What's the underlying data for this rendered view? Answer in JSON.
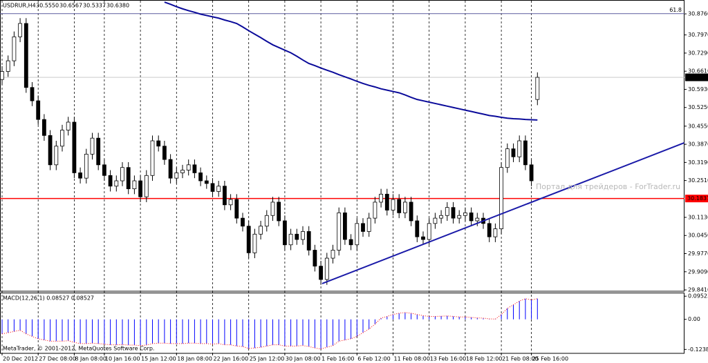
{
  "chart_data": {
    "type": "candlestick",
    "title": "USDRUR,H4",
    "ohlc_labels": [
      "30.5550",
      "30.6567",
      "30.5337",
      "30.6380"
    ],
    "categories": [
      "20 Dec 2012",
      null,
      null,
      null,
      null,
      null,
      "27 Dec 08:00",
      null,
      null,
      null,
      null,
      null,
      "8 Jan 08:00",
      null,
      null,
      null,
      null,
      "10 Jan 16:00",
      null,
      null,
      null,
      null,
      null,
      "15 Jan 12:00",
      null,
      null,
      null,
      null,
      null,
      "18 Jan 08:00",
      null,
      null,
      null,
      null,
      null,
      "22 Jan 16:00",
      null,
      null,
      null,
      null,
      null,
      "25 Jan 12:00",
      null,
      null,
      null,
      null,
      null,
      "30 Jan 08:00",
      null,
      null,
      null,
      null,
      null,
      "1 Feb 16:00",
      null,
      null,
      null,
      null,
      null,
      "6 Feb 12:00",
      null,
      null,
      null,
      null,
      null,
      "11 Feb 08:00",
      null,
      null,
      null,
      null,
      null,
      "13 Feb 16:00",
      null,
      null,
      null,
      null,
      null,
      "18 Feb 12:00",
      null,
      null,
      null,
      null,
      null,
      "21 Feb 08:00",
      null,
      null,
      null,
      null,
      "25 Feb 16:00",
      null
    ],
    "open": [
      30.63,
      30.66,
      30.7,
      30.79,
      30.84,
      30.6,
      30.55,
      30.48,
      30.42,
      30.31,
      30.38,
      30.44,
      30.47,
      30.28,
      30.26,
      30.35,
      30.41,
      30.31,
      30.27,
      30.23,
      30.25,
      30.3,
      30.22,
      30.25,
      30.19,
      30.27,
      30.4,
      30.38,
      30.33,
      30.26,
      30.28,
      30.29,
      30.31,
      30.28,
      30.25,
      30.24,
      30.21,
      30.23,
      30.16,
      30.18,
      30.11,
      30.08,
      29.98,
      30.05,
      30.08,
      30.12,
      30.17,
      30.1,
      30.01,
      30.05,
      30.03,
      30.06,
      29.99,
      29.93,
      29.88,
      29.96,
      29.99,
      30.13,
      30.03,
      30.01,
      30.09,
      30.06,
      30.11,
      30.17,
      30.2,
      30.14,
      30.18,
      30.13,
      30.17,
      30.1,
      30.04,
      30.03,
      30.09,
      30.11,
      30.12,
      30.15,
      30.11,
      30.12,
      30.13,
      30.1,
      30.11,
      30.09,
      30.04,
      30.07,
      30.3,
      30.37,
      30.34,
      30.4,
      30.31,
      30.555
    ],
    "high": [
      30.68,
      30.72,
      30.81,
      30.86,
      30.86,
      30.62,
      30.57,
      30.5,
      30.44,
      30.4,
      30.46,
      30.49,
      30.49,
      30.3,
      30.37,
      30.43,
      30.43,
      30.33,
      30.29,
      30.27,
      30.32,
      30.32,
      30.27,
      30.27,
      30.29,
      30.42,
      30.42,
      30.4,
      30.35,
      30.3,
      30.31,
      30.33,
      30.33,
      30.3,
      30.27,
      30.26,
      30.25,
      30.25,
      30.2,
      30.2,
      30.13,
      30.1,
      30.07,
      30.1,
      30.14,
      30.19,
      30.19,
      30.12,
      30.07,
      30.07,
      30.08,
      30.08,
      30.01,
      29.95,
      29.98,
      30.01,
      30.15,
      30.15,
      30.05,
      30.11,
      30.11,
      30.13,
      30.19,
      30.22,
      30.22,
      30.2,
      30.2,
      30.19,
      30.19,
      30.12,
      30.06,
      30.11,
      30.13,
      30.14,
      30.17,
      30.17,
      30.14,
      30.15,
      30.15,
      30.13,
      30.13,
      30.11,
      30.09,
      30.32,
      30.39,
      30.39,
      30.42,
      30.42,
      30.33,
      30.6567
    ],
    "low": [
      30.61,
      30.64,
      30.68,
      30.77,
      30.58,
      30.53,
      30.46,
      30.4,
      30.29,
      30.29,
      30.36,
      30.42,
      30.26,
      30.24,
      30.24,
      30.33,
      30.29,
      30.25,
      30.21,
      30.21,
      30.23,
      30.2,
      30.2,
      30.17,
      30.17,
      30.25,
      30.36,
      30.31,
      30.24,
      30.24,
      30.26,
      30.27,
      30.26,
      30.23,
      30.22,
      30.19,
      30.19,
      30.14,
      30.14,
      30.09,
      30.06,
      29.96,
      29.96,
      30.03,
      30.06,
      30.1,
      30.08,
      29.99,
      29.99,
      30.01,
      30.01,
      29.97,
      29.91,
      29.86,
      29.86,
      29.94,
      29.97,
      30.01,
      29.99,
      29.99,
      30.04,
      30.04,
      30.09,
      30.15,
      30.12,
      30.12,
      30.11,
      30.11,
      30.08,
      30.02,
      30.01,
      30.01,
      30.07,
      30.09,
      30.1,
      30.09,
      30.09,
      30.1,
      30.08,
      30.08,
      30.07,
      30.02,
      30.02,
      30.05,
      30.28,
      30.32,
      30.32,
      30.29,
      30.23,
      30.5337
    ],
    "close": [
      30.66,
      30.7,
      30.79,
      30.84,
      30.6,
      30.55,
      30.48,
      30.42,
      30.31,
      30.38,
      30.44,
      30.47,
      30.28,
      30.26,
      30.35,
      30.41,
      30.31,
      30.27,
      30.23,
      30.25,
      30.3,
      30.22,
      30.25,
      30.19,
      30.27,
      30.4,
      30.38,
      30.33,
      30.26,
      30.28,
      30.29,
      30.31,
      30.28,
      30.25,
      30.24,
      30.21,
      30.23,
      30.16,
      30.18,
      30.11,
      30.08,
      29.98,
      30.05,
      30.08,
      30.12,
      30.17,
      30.1,
      30.01,
      30.05,
      30.03,
      30.06,
      29.99,
      29.93,
      29.88,
      29.96,
      29.99,
      30.13,
      30.03,
      30.01,
      30.09,
      30.06,
      30.11,
      30.17,
      30.2,
      30.14,
      30.18,
      30.13,
      30.17,
      30.1,
      30.04,
      30.03,
      30.09,
      30.11,
      30.12,
      30.15,
      30.11,
      30.12,
      30.13,
      30.1,
      30.11,
      30.09,
      30.04,
      30.07,
      30.3,
      30.37,
      30.34,
      30.4,
      30.31,
      30.25,
      30.638
    ],
    "color_up": "#ffffff",
    "color_down": "#000000",
    "ylim": [
      29.836,
      30.928
    ],
    "yticks": [
      {
        "value": 30.876,
        "label": "30.8760"
      },
      {
        "value": 30.797,
        "label": "30.7970"
      },
      {
        "value": 30.729,
        "label": "30.7290"
      },
      {
        "value": 30.661,
        "label": "30.6610"
      },
      {
        "value": 30.593,
        "label": "30.5930"
      },
      {
        "value": 30.525,
        "label": "30.5250"
      },
      {
        "value": 30.455,
        "label": "30.4550"
      },
      {
        "value": 30.387,
        "label": "30.3870"
      },
      {
        "value": 30.319,
        "label": "30.3190"
      },
      {
        "value": 30.251,
        "label": "30.2510"
      },
      {
        "value": 30.113,
        "label": "30.1130"
      },
      {
        "value": 30.045,
        "label": "30.0450"
      },
      {
        "value": 29.977,
        "label": "29.9770"
      },
      {
        "value": 29.909,
        "label": "29.9090"
      },
      {
        "value": 29.841,
        "label": "29.8410"
      }
    ],
    "moving_average": {
      "color": "#0a0a9a",
      "values": [
        null,
        null,
        null,
        null,
        null,
        null,
        null,
        null,
        null,
        null,
        null,
        null,
        null,
        null,
        null,
        null,
        null,
        null,
        null,
        null,
        null,
        null,
        null,
        null,
        null,
        null,
        null,
        30.92,
        30.912,
        30.903,
        30.895,
        30.888,
        30.882,
        30.875,
        30.87,
        30.865,
        30.86,
        30.853,
        30.847,
        30.84,
        30.827,
        30.813,
        30.8,
        30.787,
        30.773,
        30.76,
        30.75,
        30.74,
        30.73,
        30.717,
        30.703,
        30.69,
        30.682,
        30.673,
        30.665,
        30.657,
        30.648,
        30.64,
        30.632,
        30.623,
        30.615,
        30.608,
        30.602,
        30.595,
        30.59,
        30.585,
        30.58,
        30.572,
        30.563,
        30.555,
        30.55,
        30.545,
        30.54,
        30.535,
        30.53,
        30.525,
        30.52,
        30.515,
        30.51,
        30.505,
        30.5,
        30.495,
        30.492,
        30.488,
        30.485,
        30.483,
        30.482,
        30.48,
        30.479,
        30.478
      ]
    },
    "trendline": {
      "color": "#1a1aa8",
      "x": [
        53.2,
        113.4
      ],
      "y": [
        29.8645,
        30.3924
      ]
    },
    "levels": [
      {
        "value": 30.1837,
        "label": "30.1837",
        "color": "#ff0000"
      },
      {
        "value": 30.877,
        "label": "61.8",
        "color": "#5a5a9e"
      }
    ],
    "indicator": {
      "title": "MACD(12,26,1) 0.08527 0.08527",
      "color": "#0000ff",
      "signal_color": "#ff0000",
      "values": [
        -0.06,
        -0.055,
        -0.05,
        -0.045,
        -0.06,
        -0.07,
        -0.08,
        -0.085,
        -0.09,
        -0.09,
        -0.09,
        -0.088,
        -0.095,
        -0.1,
        -0.1,
        -0.098,
        -0.1,
        -0.102,
        -0.105,
        -0.105,
        -0.104,
        -0.106,
        -0.106,
        -0.108,
        -0.106,
        -0.1,
        -0.098,
        -0.098,
        -0.1,
        -0.1,
        -0.1,
        -0.098,
        -0.098,
        -0.1,
        -0.1,
        -0.102,
        -0.1,
        -0.105,
        -0.105,
        -0.11,
        -0.112,
        -0.12,
        -0.118,
        -0.115,
        -0.11,
        -0.105,
        -0.105,
        -0.11,
        -0.11,
        -0.11,
        -0.108,
        -0.112,
        -0.118,
        -0.122,
        -0.115,
        -0.108,
        -0.09,
        -0.085,
        -0.08,
        -0.07,
        -0.055,
        -0.04,
        -0.02,
        0.005,
        0.012,
        0.02,
        0.025,
        0.028,
        0.025,
        0.02,
        0.015,
        0.012,
        0.012,
        0.013,
        0.014,
        0.012,
        0.01,
        0.01,
        0.008,
        0.006,
        0.005,
        0.002,
        0.001,
        0.02,
        0.045,
        0.06,
        0.075,
        0.085,
        0.08,
        0.08527
      ],
      "ylim": [
        -0.14,
        0.11
      ],
      "yticks": [
        {
          "value": 0.09523,
          "label": "0.09523"
        },
        {
          "value": 0,
          "label": "0.00"
        },
        {
          "value": -0.12386,
          "label": "-0.12386"
        }
      ]
    },
    "watermark": "Портал для трейдеров - ForTrader.ru",
    "footer": "MetaTrader, © 2001-2012, MetaQuotes Software Corp."
  }
}
